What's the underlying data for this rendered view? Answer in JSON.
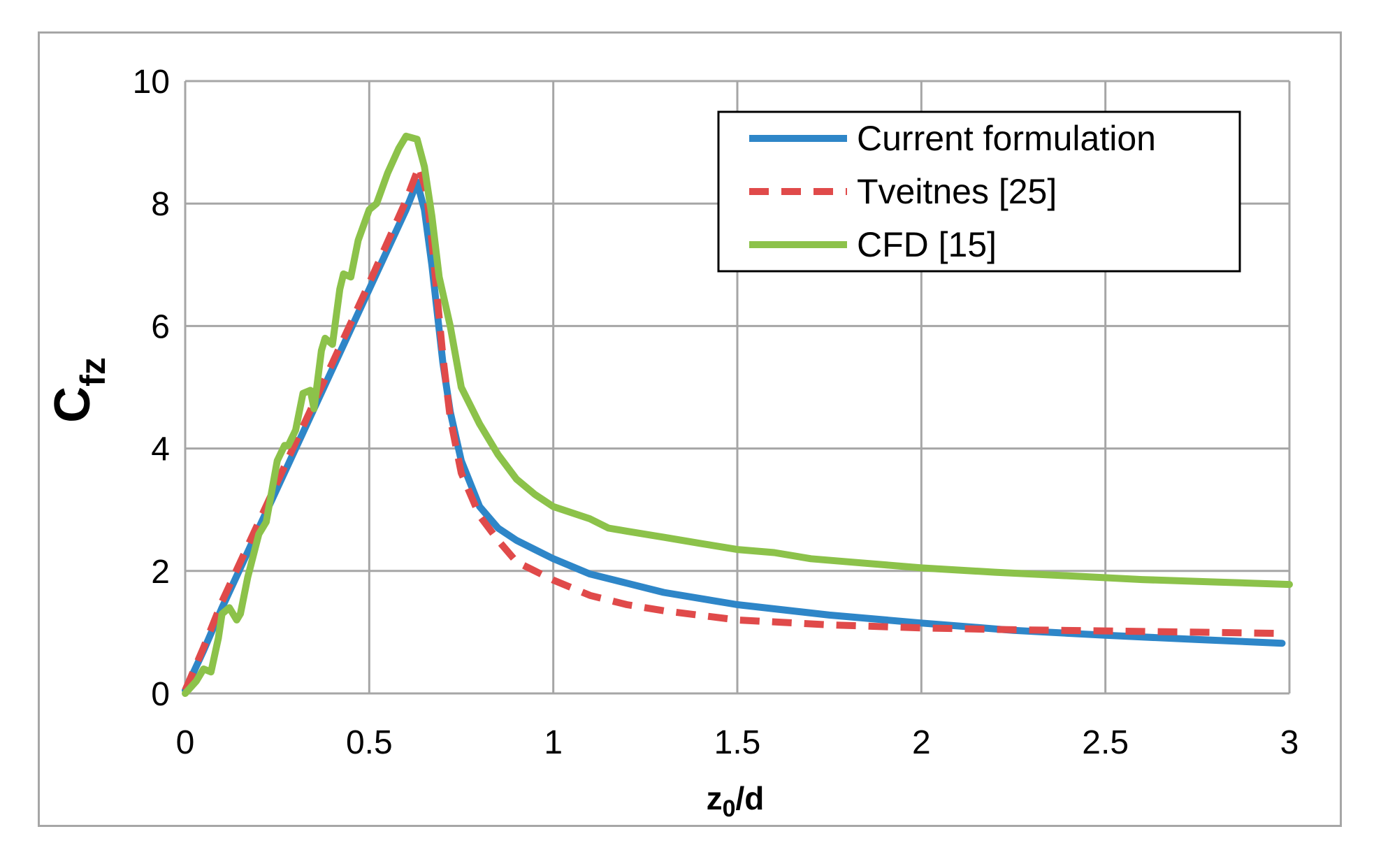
{
  "chart_data": {
    "type": "line",
    "xlabel": {
      "main": "z",
      "sub": "0",
      "rest": "/d"
    },
    "ylabel": {
      "main": "C",
      "sub": "fz"
    },
    "xlim": [
      0,
      3
    ],
    "ylim": [
      0,
      10
    ],
    "xticks": [
      {
        "value": 0,
        "label": "0"
      },
      {
        "value": 0.5,
        "label": "0.5"
      },
      {
        "value": 1,
        "label": "1"
      },
      {
        "value": 1.5,
        "label": "1.5"
      },
      {
        "value": 2,
        "label": "2"
      },
      {
        "value": 2.5,
        "label": "2.5"
      },
      {
        "value": 3,
        "label": "3"
      }
    ],
    "yticks": [
      {
        "value": 0,
        "label": "0"
      },
      {
        "value": 2,
        "label": "2"
      },
      {
        "value": 4,
        "label": "4"
      },
      {
        "value": 6,
        "label": "6"
      },
      {
        "value": 8,
        "label": "8"
      },
      {
        "value": 10,
        "label": "10"
      }
    ],
    "grid": true,
    "legend_position": "top-right",
    "series": [
      {
        "name": "Current formulation",
        "color": "#2e86c8",
        "dash": "solid",
        "x": [
          0,
          0.05,
          0.1,
          0.2,
          0.3,
          0.4,
          0.5,
          0.6,
          0.63,
          0.65,
          0.67,
          0.7,
          0.72,
          0.75,
          0.8,
          0.85,
          0.9,
          1.0,
          1.1,
          1.2,
          1.3,
          1.5,
          1.75,
          2.0,
          2.25,
          2.5,
          2.75,
          2.98
        ],
        "y": [
          0.05,
          0.7,
          1.4,
          2.7,
          4.0,
          5.3,
          6.6,
          7.9,
          8.35,
          7.9,
          7.0,
          5.4,
          4.6,
          3.8,
          3.05,
          2.7,
          2.5,
          2.2,
          1.95,
          1.8,
          1.65,
          1.45,
          1.28,
          1.15,
          1.03,
          0.95,
          0.88,
          0.82
        ]
      },
      {
        "name": "Tveitnes [25]",
        "color": "#e04a4a",
        "dash": "dashed",
        "x": [
          0,
          0.05,
          0.1,
          0.2,
          0.3,
          0.4,
          0.5,
          0.6,
          0.635,
          0.655,
          0.67,
          0.7,
          0.72,
          0.75,
          0.8,
          0.85,
          0.9,
          1.0,
          1.1,
          1.2,
          1.3,
          1.5,
          1.75,
          2.0,
          2.25,
          2.5,
          2.75,
          2.98
        ],
        "y": [
          0.05,
          0.75,
          1.5,
          2.8,
          4.1,
          5.4,
          6.7,
          8.05,
          8.6,
          8.2,
          7.4,
          5.5,
          4.5,
          3.6,
          2.9,
          2.5,
          2.15,
          1.85,
          1.6,
          1.45,
          1.35,
          1.2,
          1.12,
          1.07,
          1.04,
          1.02,
          1.0,
          0.98
        ]
      },
      {
        "name": "CFD [15]",
        "color": "#8cc24a",
        "dash": "solid",
        "x": [
          0,
          0.03,
          0.05,
          0.07,
          0.09,
          0.1,
          0.12,
          0.14,
          0.15,
          0.17,
          0.2,
          0.22,
          0.25,
          0.27,
          0.28,
          0.3,
          0.32,
          0.34,
          0.35,
          0.37,
          0.38,
          0.4,
          0.42,
          0.43,
          0.45,
          0.47,
          0.5,
          0.52,
          0.55,
          0.58,
          0.6,
          0.63,
          0.65,
          0.67,
          0.69,
          0.72,
          0.75,
          0.8,
          0.85,
          0.9,
          0.95,
          1.0,
          1.1,
          1.15,
          1.2,
          1.3,
          1.4,
          1.5,
          1.6,
          1.7,
          1.8,
          1.9,
          2.0,
          2.2,
          2.4,
          2.6,
          2.8,
          3.0
        ],
        "y": [
          0.0,
          0.2,
          0.4,
          0.35,
          0.9,
          1.3,
          1.4,
          1.2,
          1.3,
          1.9,
          2.6,
          2.8,
          3.8,
          4.05,
          4.05,
          4.3,
          4.9,
          4.95,
          4.65,
          5.6,
          5.8,
          5.7,
          6.6,
          6.85,
          6.8,
          7.4,
          7.9,
          8.0,
          8.5,
          8.9,
          9.1,
          9.05,
          8.6,
          7.8,
          6.8,
          6.0,
          5.0,
          4.4,
          3.9,
          3.5,
          3.25,
          3.05,
          2.85,
          2.7,
          2.65,
          2.55,
          2.45,
          2.35,
          2.3,
          2.2,
          2.15,
          2.1,
          2.05,
          1.98,
          1.92,
          1.86,
          1.82,
          1.78
        ]
      }
    ]
  }
}
